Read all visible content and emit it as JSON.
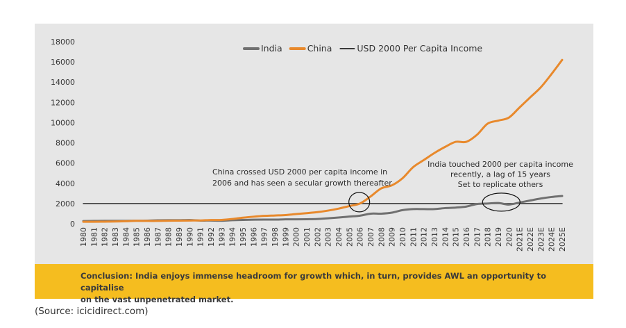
{
  "chart_data": {
    "type": "line",
    "title": "",
    "xlabel": "",
    "ylabel": "",
    "ylim": [
      0,
      18000
    ],
    "yticks": [
      0,
      2000,
      4000,
      6000,
      8000,
      10000,
      12000,
      14000,
      16000,
      18000
    ],
    "categories": [
      "1980",
      "1981",
      "1982",
      "1983",
      "1984",
      "1985",
      "1986",
      "1987",
      "1988",
      "1989",
      "1990",
      "1991",
      "1992",
      "1993",
      "1994",
      "1995",
      "1996",
      "1997",
      "1998",
      "1999",
      "2000",
      "2001",
      "2002",
      "2003",
      "2004",
      "2005",
      "2006",
      "2007",
      "2008",
      "2009",
      "2010",
      "2011",
      "2012",
      "2013",
      "2014",
      "2015",
      "2016",
      "2017",
      "2018",
      "2019",
      "2020",
      "2021E",
      "2022E",
      "2023E",
      "2024E",
      "2025E"
    ],
    "series": [
      {
        "name": "India",
        "color": "#707070",
        "values": [
          270,
          280,
          290,
          290,
          290,
          300,
          310,
          340,
          350,
          350,
          370,
          310,
          320,
          300,
          350,
          380,
          400,
          410,
          410,
          440,
          440,
          450,
          470,
          540,
          620,
          710,
          800,
          1000,
          1000,
          1100,
          1350,
          1450,
          1450,
          1450,
          1550,
          1600,
          1700,
          1950,
          2000,
          2050,
          1900,
          2100,
          2300,
          2500,
          2650,
          2750
        ]
      },
      {
        "name": "China",
        "color": "#e8892c",
        "values": [
          200,
          200,
          210,
          220,
          250,
          290,
          280,
          280,
          300,
          310,
          320,
          330,
          370,
          380,
          470,
          600,
          700,
          780,
          820,
          860,
          960,
          1050,
          1150,
          1300,
          1500,
          1750,
          2000,
          2700,
          3500,
          3800,
          4500,
          5600,
          6300,
          7000,
          7600,
          8100,
          8100,
          8800,
          9900,
          10200,
          10500,
          11500,
          12500,
          13500,
          14800,
          16200
        ]
      },
      {
        "name": "USD 2000 Per Capita Income",
        "color": "#3a3a3a",
        "values": [
          2000,
          2000,
          2000,
          2000,
          2000,
          2000,
          2000,
          2000,
          2000,
          2000,
          2000,
          2000,
          2000,
          2000,
          2000,
          2000,
          2000,
          2000,
          2000,
          2000,
          2000,
          2000,
          2000,
          2000,
          2000,
          2000,
          2000,
          2000,
          2000,
          2000,
          2000,
          2000,
          2000,
          2000,
          2000,
          2000,
          2000,
          2000,
          2000,
          2000,
          2000,
          2000,
          2000,
          2000,
          2000,
          2000
        ]
      }
    ],
    "legend_position": "top-center",
    "grid": false,
    "annotations": [
      {
        "lines": [
          "China crossed USD 2000 per capita income in",
          "2006 and has seen a secular growth thereafter"
        ],
        "x": "2006",
        "y": 2000
      },
      {
        "lines": [
          "India touched 2000 per capita income",
          "recently, a lag of 15 years",
          "Set to replicate others"
        ],
        "x": "2020",
        "y": 2000
      }
    ]
  },
  "conclusion": {
    "line1": "Conclusion: India enjoys immense headroom for growth which, in turn, provides AWL an opportunity to capitalise",
    "line2": "on the vast unpenetrated market."
  },
  "source": "(Source: icicidirect.com)"
}
